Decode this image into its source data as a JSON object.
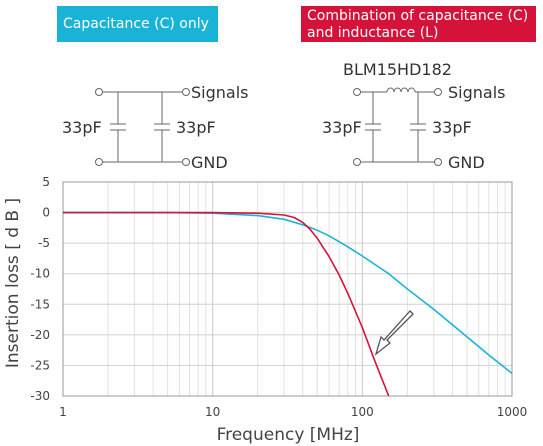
{
  "legend_boxes": {
    "capacitance_only": {
      "text": "Capacitance (C) only",
      "color": "#1ab3d8"
    },
    "combination": {
      "line1": "Combination of capacitance (C)",
      "line2": "and inductance (L)",
      "color": "#d5133a"
    }
  },
  "circuits": {
    "left": {
      "cap_left": "33pF",
      "cap_right": "33pF",
      "signals": "Signals",
      "gnd": "GND"
    },
    "right": {
      "part_number": "BLM15HD182",
      "cap_left": "33pF",
      "cap_right": "33pF",
      "signals": "Signals",
      "gnd": "GND"
    }
  },
  "chart_data": {
    "type": "line",
    "xlabel": "Frequency [MHz]",
    "ylabel": "Insertion loss [ d B ]",
    "x_scale": "log",
    "xlim": [
      1,
      1000
    ],
    "ylim": [
      -30,
      5
    ],
    "x_ticks": [
      "1",
      "10",
      "100",
      "1000"
    ],
    "y_ticks": [
      "5",
      "0",
      "-5",
      "-10",
      "-15",
      "-20",
      "-25",
      "-30"
    ],
    "grid": true,
    "series": [
      {
        "color": "#1ab3d8",
        "x": [
          1,
          5,
          10,
          20,
          30,
          40,
          50,
          60,
          80,
          100,
          150,
          200,
          300,
          500,
          700,
          1000
        ],
        "y": [
          0,
          0,
          -0.1,
          -0.5,
          -1.1,
          -2.0,
          -2.9,
          -3.8,
          -5.6,
          -7.1,
          -10.0,
          -12.5,
          -15.8,
          -20.3,
          -23.3,
          -26.3
        ]
      },
      {
        "color": "#d5133a",
        "x": [
          1,
          10,
          20,
          30,
          35,
          40,
          45,
          50,
          60,
          70,
          80,
          100,
          120,
          150
        ],
        "y": [
          0,
          0,
          -0.1,
          -0.4,
          -0.8,
          -1.6,
          -2.8,
          -4.2,
          -7.2,
          -10.2,
          -13.2,
          -18.8,
          -24.0,
          -30.0
        ]
      }
    ],
    "annotation": "arrow-down-left"
  }
}
